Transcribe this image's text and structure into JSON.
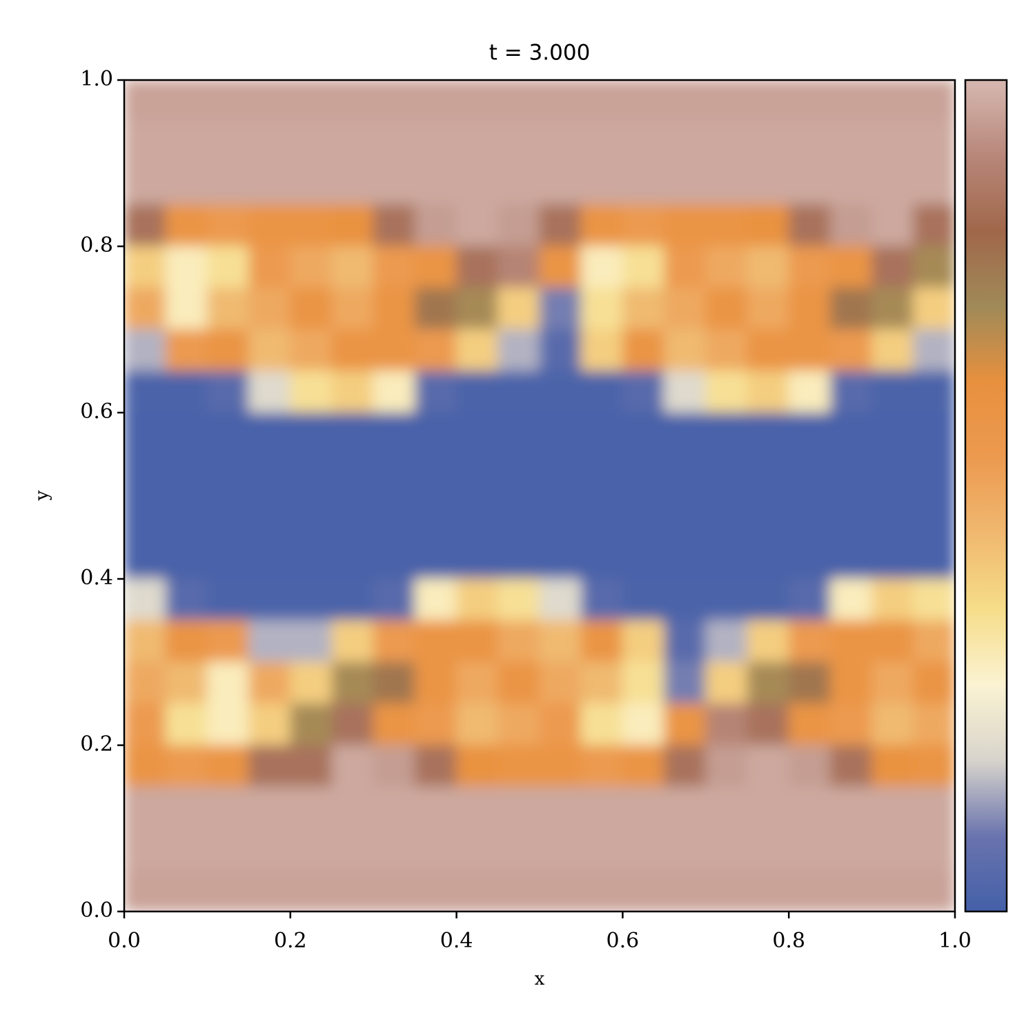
{
  "chart_data": {
    "type": "heatmap",
    "title": "t = 3.000",
    "x_label": "x",
    "y_label": "y",
    "xlim": [
      0,
      1
    ],
    "ylim": [
      0,
      1
    ],
    "xticks": [
      {
        "value": 0,
        "label": "0.0"
      },
      0.2,
      0.4,
      0.6,
      0.8,
      {
        "value": 1,
        "label": "1.0"
      }
    ],
    "yticks": [
      {
        "value": 0,
        "label": "0.0"
      },
      0.2,
      0.4,
      0.6,
      0.8,
      {
        "value": 1,
        "label": "1.0"
      }
    ],
    "zlim": [
      0,
      1
    ],
    "colormap": [
      "#4460a8",
      "#6a74ae",
      "#d8d4cc",
      "#fbf3d2",
      "#f6dd8a",
      "#f0b870",
      "#ec9a50",
      "#e8903e",
      "#a08a58",
      "#a0674a",
      "#b8877a",
      "#d6b8b0"
    ],
    "z": [
      [
        0.96,
        0.96,
        0.96,
        0.96,
        0.96,
        0.96,
        0.96,
        0.96,
        0.96,
        0.96,
        0.96,
        0.96,
        0.96,
        0.96,
        0.96,
        0.96,
        0.96,
        0.96,
        0.96,
        0.96
      ],
      [
        0.97,
        0.97,
        0.97,
        0.97,
        0.97,
        0.97,
        0.97,
        0.97,
        0.97,
        0.97,
        0.97,
        0.97,
        0.97,
        0.97,
        0.97,
        0.97,
        0.97,
        0.97,
        0.97,
        0.97
      ],
      [
        0.97,
        0.97,
        0.97,
        0.97,
        0.97,
        0.97,
        0.97,
        0.97,
        0.97,
        0.97,
        0.97,
        0.97,
        0.97,
        0.97,
        0.97,
        0.97,
        0.97,
        0.97,
        0.97,
        0.97
      ],
      [
        0.85,
        0.6,
        0.55,
        0.6,
        0.6,
        0.62,
        0.85,
        0.95,
        0.97,
        0.95,
        0.85,
        0.6,
        0.55,
        0.6,
        0.6,
        0.62,
        0.85,
        0.95,
        0.97,
        0.85
      ],
      [
        0.4,
        0.3,
        0.35,
        0.55,
        0.5,
        0.45,
        0.55,
        0.6,
        0.85,
        0.9,
        0.6,
        0.3,
        0.35,
        0.55,
        0.5,
        0.45,
        0.55,
        0.6,
        0.85,
        0.72
      ],
      [
        0.5,
        0.3,
        0.45,
        0.5,
        0.6,
        0.5,
        0.6,
        0.78,
        0.72,
        0.4,
        0.1,
        0.35,
        0.45,
        0.5,
        0.6,
        0.5,
        0.6,
        0.78,
        0.72,
        0.4
      ],
      [
        0.15,
        0.55,
        0.6,
        0.45,
        0.5,
        0.6,
        0.6,
        0.55,
        0.4,
        0.15,
        0.05,
        0.4,
        0.6,
        0.45,
        0.5,
        0.6,
        0.6,
        0.55,
        0.4,
        0.15
      ],
      [
        0.02,
        0.02,
        0.05,
        0.2,
        0.35,
        0.4,
        0.3,
        0.05,
        0.02,
        0.02,
        0.02,
        0.02,
        0.05,
        0.2,
        0.35,
        0.4,
        0.3,
        0.05,
        0.02,
        0.02
      ],
      [
        0.01,
        0.01,
        0.01,
        0.01,
        0.01,
        0.01,
        0.01,
        0.01,
        0.01,
        0.01,
        0.01,
        0.01,
        0.01,
        0.01,
        0.01,
        0.01,
        0.01,
        0.01,
        0.01,
        0.01
      ],
      [
        0.01,
        0.01,
        0.01,
        0.01,
        0.01,
        0.01,
        0.01,
        0.01,
        0.01,
        0.01,
        0.01,
        0.01,
        0.01,
        0.01,
        0.01,
        0.01,
        0.01,
        0.01,
        0.01,
        0.01
      ],
      [
        0.01,
        0.01,
        0.01,
        0.01,
        0.01,
        0.01,
        0.01,
        0.01,
        0.01,
        0.01,
        0.01,
        0.01,
        0.01,
        0.01,
        0.01,
        0.01,
        0.01,
        0.01,
        0.01,
        0.01
      ],
      [
        0.01,
        0.01,
        0.01,
        0.01,
        0.01,
        0.01,
        0.01,
        0.01,
        0.01,
        0.01,
        0.01,
        0.01,
        0.01,
        0.01,
        0.01,
        0.01,
        0.01,
        0.01,
        0.01,
        0.01
      ],
      [
        0.2,
        0.05,
        0.02,
        0.02,
        0.02,
        0.02,
        0.05,
        0.3,
        0.4,
        0.35,
        0.2,
        0.05,
        0.02,
        0.02,
        0.02,
        0.02,
        0.05,
        0.3,
        0.4,
        0.35
      ],
      [
        0.45,
        0.6,
        0.55,
        0.15,
        0.15,
        0.4,
        0.55,
        0.6,
        0.6,
        0.5,
        0.45,
        0.6,
        0.4,
        0.05,
        0.15,
        0.4,
        0.55,
        0.6,
        0.6,
        0.5
      ],
      [
        0.5,
        0.45,
        0.3,
        0.5,
        0.4,
        0.72,
        0.78,
        0.6,
        0.5,
        0.6,
        0.5,
        0.45,
        0.35,
        0.1,
        0.4,
        0.72,
        0.78,
        0.6,
        0.5,
        0.6
      ],
      [
        0.55,
        0.35,
        0.3,
        0.4,
        0.72,
        0.85,
        0.6,
        0.55,
        0.45,
        0.5,
        0.55,
        0.35,
        0.3,
        0.6,
        0.9,
        0.85,
        0.6,
        0.55,
        0.45,
        0.5
      ],
      [
        0.6,
        0.55,
        0.6,
        0.85,
        0.85,
        0.97,
        0.95,
        0.85,
        0.62,
        0.6,
        0.6,
        0.55,
        0.6,
        0.85,
        0.95,
        0.97,
        0.95,
        0.85,
        0.62,
        0.6
      ],
      [
        0.97,
        0.97,
        0.97,
        0.97,
        0.97,
        0.97,
        0.97,
        0.97,
        0.97,
        0.97,
        0.97,
        0.97,
        0.97,
        0.97,
        0.97,
        0.97,
        0.97,
        0.97,
        0.97,
        0.97
      ],
      [
        0.97,
        0.97,
        0.97,
        0.97,
        0.97,
        0.97,
        0.97,
        0.97,
        0.97,
        0.97,
        0.97,
        0.97,
        0.97,
        0.97,
        0.97,
        0.97,
        0.97,
        0.97,
        0.97,
        0.97
      ],
      [
        0.96,
        0.96,
        0.96,
        0.96,
        0.96,
        0.96,
        0.96,
        0.96,
        0.96,
        0.96,
        0.96,
        0.96,
        0.96,
        0.96,
        0.96,
        0.96,
        0.96,
        0.96,
        0.96,
        0.96
      ]
    ]
  }
}
